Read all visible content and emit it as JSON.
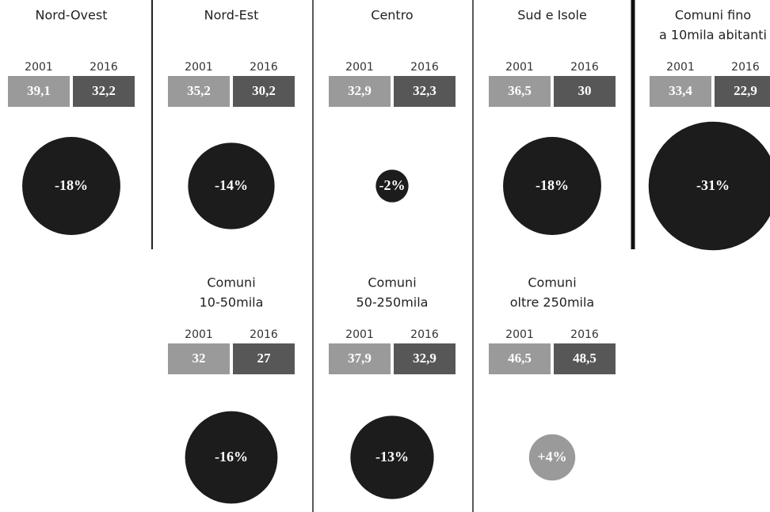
{
  "panels": [
    {
      "title_lines": [
        "Nord-Ovest"
      ],
      "years": [
        2001,
        2016
      ],
      "values": [
        39.1,
        32.2
      ],
      "value_labels": [
        "39,1",
        "32,2"
      ],
      "change": -18,
      "change_label": "-18%"
    },
    {
      "title_lines": [
        "Nord-Est"
      ],
      "years": [
        2001,
        2016
      ],
      "values": [
        35.2,
        30.2
      ],
      "value_labels": [
        "35,2",
        "30,2"
      ],
      "change": -14,
      "change_label": "-14%"
    },
    {
      "title_lines": [
        "Centro"
      ],
      "years": [
        2001,
        2016
      ],
      "values": [
        32.9,
        32.3
      ],
      "value_labels": [
        "32,9",
        "32,3"
      ],
      "change": -2,
      "change_label": "-2%"
    },
    {
      "title_lines": [
        "Sud e Isole"
      ],
      "years": [
        2001,
        2016
      ],
      "values": [
        36.5,
        30
      ],
      "value_labels": [
        "36,5",
        "30"
      ],
      "change": -18,
      "change_label": "-18%"
    },
    {
      "title_lines": [
        "Comuni fino",
        "a 10mila abitanti"
      ],
      "years": [
        2001,
        2016
      ],
      "values": [
        33.4,
        22.9
      ],
      "value_labels": [
        "33,4",
        "22,9"
      ],
      "change": -31,
      "change_label": "-31%"
    },
    {
      "title_lines": [
        "Comuni",
        "10-50mila"
      ],
      "years": [
        2001,
        2016
      ],
      "values": [
        32,
        27
      ],
      "value_labels": [
        "32",
        "27"
      ],
      "change": -16,
      "change_label": "-16%"
    },
    {
      "title_lines": [
        "Comuni",
        "50-250mila"
      ],
      "years": [
        2001,
        2016
      ],
      "values": [
        37.9,
        32.9
      ],
      "value_labels": [
        "37,9",
        "32,9"
      ],
      "change": -13,
      "change_label": "-13%"
    },
    {
      "title_lines": [
        "Comuni",
        "oltre 250mila"
      ],
      "years": [
        2001,
        2016
      ],
      "values": [
        46.5,
        48.5
      ],
      "value_labels": [
        "46,5",
        "48,5"
      ],
      "change": 4,
      "change_label": "+4%"
    }
  ],
  "negative_color": "#1c1c1c",
  "positive_color": "#9a9a9a",
  "box_colors": [
    "#9a9a9a",
    "#575757"
  ]
}
